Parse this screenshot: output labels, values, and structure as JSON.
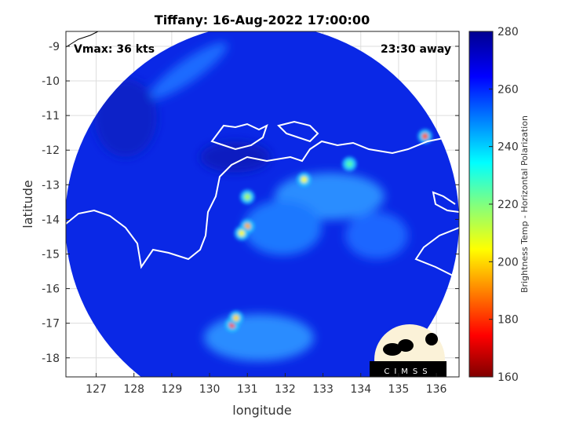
{
  "chart_data": {
    "type": "heatmap",
    "title": "Tiffany: 16-Aug-2022 17:00:00",
    "xlabel": "longitude",
    "ylabel": "latitude",
    "xlim": [
      126.2,
      136.6
    ],
    "ylim": [
      -18.55,
      -8.57
    ],
    "xticks": [
      127,
      128,
      129,
      130,
      131,
      132,
      133,
      134,
      135,
      136
    ],
    "yticks": [
      -9,
      -10,
      -11,
      -12,
      -13,
      -14,
      -15,
      -16,
      -17,
      -18
    ],
    "grid": true,
    "annotations": {
      "left": "Vmax: 36 kts",
      "right": "23:30 away"
    },
    "colorbar": {
      "label": "Brightness Temp - Horizontal Polarization",
      "range": [
        160,
        280
      ],
      "ticks": [
        160,
        180,
        200,
        220,
        240,
        260,
        280
      ],
      "colormap": "jet"
    },
    "swath": {
      "center_lon": 131.3,
      "center_lat": -13.3,
      "radius_deg_lon": 5.15
    },
    "cold_spots": [
      {
        "lon": 135.7,
        "lat": -11.6,
        "value": 185
      },
      {
        "lon": 130.6,
        "lat": -17.05,
        "value": 180
      },
      {
        "lon": 130.7,
        "lat": -16.85,
        "value": 200
      },
      {
        "lon": 131.0,
        "lat": -14.2,
        "value": 195
      },
      {
        "lon": 130.85,
        "lat": -14.4,
        "value": 205
      },
      {
        "lon": 131.0,
        "lat": -13.35,
        "value": 215
      },
      {
        "lon": 132.5,
        "lat": -12.85,
        "value": 205
      },
      {
        "lon": 133.7,
        "lat": -12.4,
        "value": 225
      }
    ],
    "logo": "CIMSS"
  }
}
